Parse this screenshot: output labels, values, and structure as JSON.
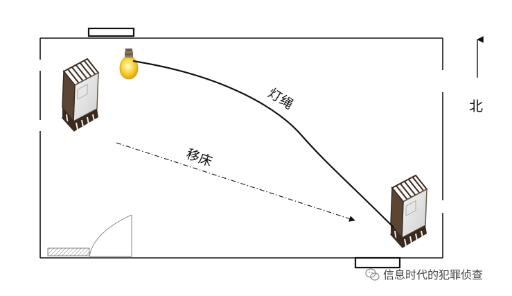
{
  "labels": {
    "lamp_cord": "灯绳",
    "move_bed": "移床",
    "north": "北"
  },
  "watermark": {
    "text": "信息时代的犯罪侦查",
    "icon": "wechat-icon"
  },
  "colors": {
    "line": "#111111",
    "bulb": "#f6c21a",
    "bulb_glow": "#fff3a0",
    "bed_dark": "#3a2a1e",
    "bed_frame": "#6b5a48"
  }
}
